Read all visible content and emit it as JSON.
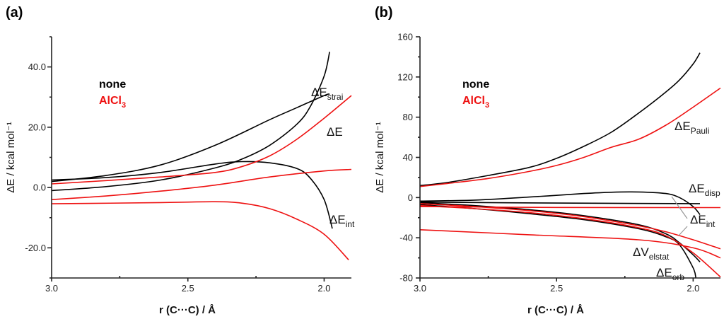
{
  "colors": {
    "none": "#000000",
    "AlCl3": "#ee1111",
    "leader": "#999999"
  },
  "chart_data": [
    {
      "type": "line",
      "panel_label": "(a)",
      "xlabel": "r (C···C) / Å",
      "ylabel": "ΔE / kcal mol⁻¹",
      "xlim": [
        3.0,
        1.9
      ],
      "x_reversed": true,
      "ylim": [
        -30,
        50
      ],
      "xticks": [
        "3.0",
        "2.5",
        "2.0"
      ],
      "yticks": [
        "-20.0",
        "0.0",
        "20.0",
        "40.0"
      ],
      "legend": {
        "none": "none",
        "AlCl3_main": "AlCl",
        "AlCl3_sub": "3"
      },
      "labels": {
        "strain": {
          "main": "ΔE",
          "sub": "strai"
        },
        "total": {
          "main": "ΔE",
          "sub": ""
        },
        "int": {
          "main": "ΔE",
          "sub": "int"
        }
      },
      "series": [
        {
          "key": "strain",
          "group": "none",
          "x": [
            3.0,
            2.8,
            2.6,
            2.4,
            2.3,
            2.2,
            2.1,
            2.05,
            2.0,
            1.98
          ],
          "y": [
            -1,
            0.3,
            2.5,
            6.5,
            9.5,
            14,
            21,
            27,
            37,
            45
          ]
        },
        {
          "key": "total",
          "group": "none",
          "x": [
            3.0,
            2.8,
            2.6,
            2.4,
            2.2,
            2.1,
            2.0,
            1.98
          ],
          "y": [
            2,
            4,
            7.5,
            14,
            22.5,
            26.5,
            30.5,
            31
          ]
        },
        {
          "key": "int",
          "group": "none",
          "x": [
            3.0,
            2.8,
            2.6,
            2.4,
            2.3,
            2.2,
            2.1,
            2.05,
            2.0,
            1.97
          ],
          "y": [
            2.5,
            3.3,
            5,
            7.8,
            8.6,
            8.2,
            6.3,
            3,
            -4,
            -13.6
          ]
        },
        {
          "key": "strain",
          "group": "AlCl3",
          "x": [
            3.0,
            2.8,
            2.6,
            2.4,
            2.3,
            2.2,
            2.1,
            2.0,
            1.9
          ],
          "y": [
            1.2,
            2.3,
            3.5,
            5,
            7,
            10.5,
            16,
            23,
            30.5
          ]
        },
        {
          "key": "total",
          "group": "AlCl3",
          "x": [
            3.0,
            2.8,
            2.6,
            2.4,
            2.2,
            2.0,
            1.9
          ],
          "y": [
            -4,
            -2.8,
            -1.2,
            0.8,
            3.5,
            5.5,
            6
          ]
        },
        {
          "key": "int",
          "group": "AlCl3",
          "x": [
            3.0,
            2.6,
            2.4,
            2.3,
            2.2,
            2.1,
            2.0,
            1.91
          ],
          "y": [
            -5.4,
            -5,
            -4.7,
            -5.2,
            -7,
            -10.5,
            -15.5,
            -24
          ]
        }
      ]
    },
    {
      "type": "line",
      "panel_label": "(b)",
      "xlabel": "r (C···C) / Å",
      "ylabel": "ΔE / kcal mol⁻¹",
      "xlim": [
        3.0,
        1.9
      ],
      "x_reversed": true,
      "ylim": [
        -80,
        160
      ],
      "xticks": [
        "3.0",
        "2.5",
        "2.0"
      ],
      "yticks": [
        "-80",
        "-40",
        "0",
        "40",
        "80",
        "120",
        "160"
      ],
      "legend": {
        "none": "none",
        "AlCl3_main": "AlCl",
        "AlCl3_sub": "3"
      },
      "labels": {
        "pauli": {
          "main": "ΔE",
          "sub": "Pauli"
        },
        "disp": {
          "main": "ΔE",
          "sub": "disp"
        },
        "int": {
          "main": "ΔE",
          "sub": "int"
        },
        "elstat": {
          "main": "ΔV",
          "sub": "elstat"
        },
        "orb": {
          "main": "ΔE",
          "sub": "orb"
        }
      },
      "series": [
        {
          "key": "pauli",
          "group": "none",
          "x": [
            3.0,
            2.9,
            2.75,
            2.6,
            2.5,
            2.4,
            2.3,
            2.2,
            2.1,
            2.05,
            2.0,
            1.975
          ],
          "y": [
            12,
            15,
            22,
            30,
            39,
            51,
            65,
            84,
            105,
            117,
            133,
            144
          ]
        },
        {
          "key": "disp",
          "group": "none",
          "x": [
            3.0,
            2.5,
            1.975
          ],
          "y": [
            -4.5,
            -5.5,
            -6
          ]
        },
        {
          "key": "int",
          "group": "none",
          "x": [
            3.0,
            2.8,
            2.6,
            2.4,
            2.3,
            2.2,
            2.1,
            2.05,
            2.0,
            1.975
          ],
          "y": [
            -3.5,
            -2.5,
            0.5,
            4,
            5.3,
            5.6,
            4,
            0,
            -9,
            -17
          ]
        },
        {
          "key": "elstat",
          "group": "none",
          "x": [
            3.0,
            2.8,
            2.6,
            2.4,
            2.2,
            2.1,
            2.05,
            2.0,
            1.975
          ],
          "y": [
            -5,
            -8,
            -12,
            -18,
            -27,
            -36,
            -45,
            -57,
            -64
          ]
        },
        {
          "key": "orb",
          "group": "none",
          "x": [
            3.0,
            2.8,
            2.6,
            2.4,
            2.2,
            2.1,
            2.05,
            2.0,
            1.99
          ],
          "y": [
            -7,
            -11,
            -16,
            -22,
            -31,
            -39,
            -47,
            -70,
            -80
          ]
        },
        {
          "key": "pauli",
          "group": "AlCl3",
          "x": [
            3.0,
            2.9,
            2.75,
            2.6,
            2.5,
            2.4,
            2.3,
            2.2,
            2.1,
            2.0,
            1.9
          ],
          "y": [
            11,
            14,
            19,
            26,
            32,
            40,
            50,
            58,
            72,
            90,
            109
          ]
        },
        {
          "key": "disp",
          "group": "AlCl3",
          "x": [
            3.0,
            2.5,
            1.9
          ],
          "y": [
            -9,
            -9.8,
            -10
          ]
        },
        {
          "key": "int",
          "group": "AlCl3",
          "x": [
            3.0,
            2.8,
            2.6,
            2.4,
            2.2,
            2.1,
            2.0,
            1.9
          ],
          "y": [
            -6,
            -9,
            -13,
            -19,
            -28,
            -34,
            -42,
            -51
          ]
        },
        {
          "key": "elstat",
          "group": "AlCl3",
          "x": [
            3.0,
            2.6,
            2.2,
            2.0,
            1.9
          ],
          "y": [
            -32,
            -37,
            -42,
            -50,
            -60
          ]
        },
        {
          "key": "orb",
          "group": "AlCl3",
          "x": [
            3.0,
            2.8,
            2.6,
            2.4,
            2.2,
            2.1,
            2.0,
            1.9
          ],
          "y": [
            -8,
            -11,
            -15,
            -21,
            -30,
            -38,
            -55,
            -79
          ]
        }
      ]
    }
  ]
}
